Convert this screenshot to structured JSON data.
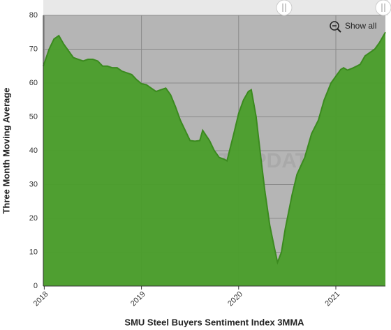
{
  "chart_data": {
    "type": "area",
    "x_label": "SMU Steel Buyers Sentiment Index 3MMA",
    "y_label": "Three Month Moving Average",
    "watermark": "STEEL MARKET UPDATE",
    "button": "Show all",
    "color": "#4a9e2a",
    "x": [
      2017.99,
      2018.05,
      2018.1,
      2018.15,
      2018.2,
      2018.25,
      2018.3,
      2018.35,
      2018.4,
      2018.45,
      2018.5,
      2018.55,
      2018.6,
      2018.65,
      2018.7,
      2018.75,
      2018.8,
      2018.85,
      2018.9,
      2018.95,
      2019.0,
      2019.05,
      2019.1,
      2019.15,
      2019.2,
      2019.25,
      2019.3,
      2019.35,
      2019.4,
      2019.45,
      2019.5,
      2019.55,
      2019.6,
      2019.63,
      2019.7,
      2019.75,
      2019.8,
      2019.85,
      2019.88,
      2019.95,
      2020.0,
      2020.05,
      2020.1,
      2020.13,
      2020.18,
      2020.22,
      2020.27,
      2020.32,
      2020.37,
      2020.4,
      2020.44,
      2020.48,
      2020.55,
      2020.6,
      2020.68,
      2020.75,
      2020.82,
      2020.88,
      2020.95,
      2021.0,
      2021.05,
      2021.08,
      2021.12,
      2021.18,
      2021.25,
      2021.3,
      2021.35,
      2021.4,
      2021.45,
      2021.51
    ],
    "values": [
      65,
      70,
      73,
      74,
      71.5,
      69.5,
      67.5,
      67,
      66.5,
      67,
      67,
      66.5,
      65,
      65,
      64.5,
      64.5,
      63.5,
      63,
      62.5,
      61,
      59.8,
      59.5,
      58.5,
      57.5,
      58,
      58.5,
      56.5,
      53,
      49,
      46,
      43,
      42.8,
      43,
      46,
      43,
      40,
      38,
      37.5,
      37,
      45,
      51,
      55,
      57.5,
      58,
      50,
      40,
      28,
      18,
      11,
      7,
      10,
      17,
      27,
      33,
      38,
      45,
      49,
      55,
      60,
      62,
      64,
      64.5,
      63.8,
      64.5,
      65.5,
      68,
      69,
      70,
      72,
      75
    ],
    "xlim": [
      2017.99,
      2021.51
    ],
    "xticks": [
      2018,
      2019,
      2020,
      2021
    ],
    "ylim": [
      0,
      80
    ],
    "yticks": [
      0,
      10,
      20,
      30,
      40,
      50,
      60,
      70,
      80
    ],
    "grid": true
  }
}
